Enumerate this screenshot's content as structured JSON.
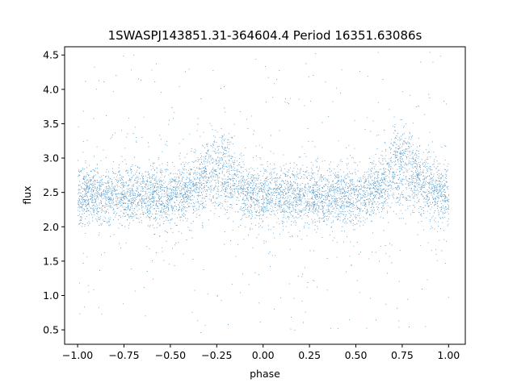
{
  "chart_data": {
    "type": "scatter",
    "title": "1SWASPJ143851.31-364604.4 Period 16351.63086s",
    "xlabel": "phase",
    "ylabel": "flux",
    "xlim": [
      -1.07,
      1.09
    ],
    "ylim": [
      0.29,
      4.62
    ],
    "xticks": [
      -1.0,
      -0.75,
      -0.5,
      -0.25,
      0.0,
      0.25,
      0.5,
      0.75,
      1.0
    ],
    "xtick_labels": [
      "−1.00",
      "−0.75",
      "−0.50",
      "−0.25",
      "0.00",
      "0.25",
      "0.50",
      "0.75",
      "1.00"
    ],
    "yticks": [
      0.5,
      1.0,
      1.5,
      2.0,
      2.5,
      3.0,
      3.5,
      4.0,
      4.5
    ],
    "ytick_labels": [
      "0.5",
      "1.0",
      "1.5",
      "2.0",
      "2.5",
      "3.0",
      "3.5",
      "4.0",
      "4.5"
    ],
    "grid": false,
    "marker_color": "#1f77b4",
    "series": [
      {
        "points_description": "dense phase-folded light curve, about 40000 points spanning phase -1 to 1",
        "phase_range": [
          -1.0,
          1.0
        ],
        "baseline_flux": 2.45,
        "baseline_scatter": 0.2,
        "bump_centers_phase": [
          -0.25,
          0.75
        ],
        "bump_peak_flux": 3.05,
        "outlier_flux_range": [
          0.45,
          4.55
        ]
      }
    ]
  }
}
